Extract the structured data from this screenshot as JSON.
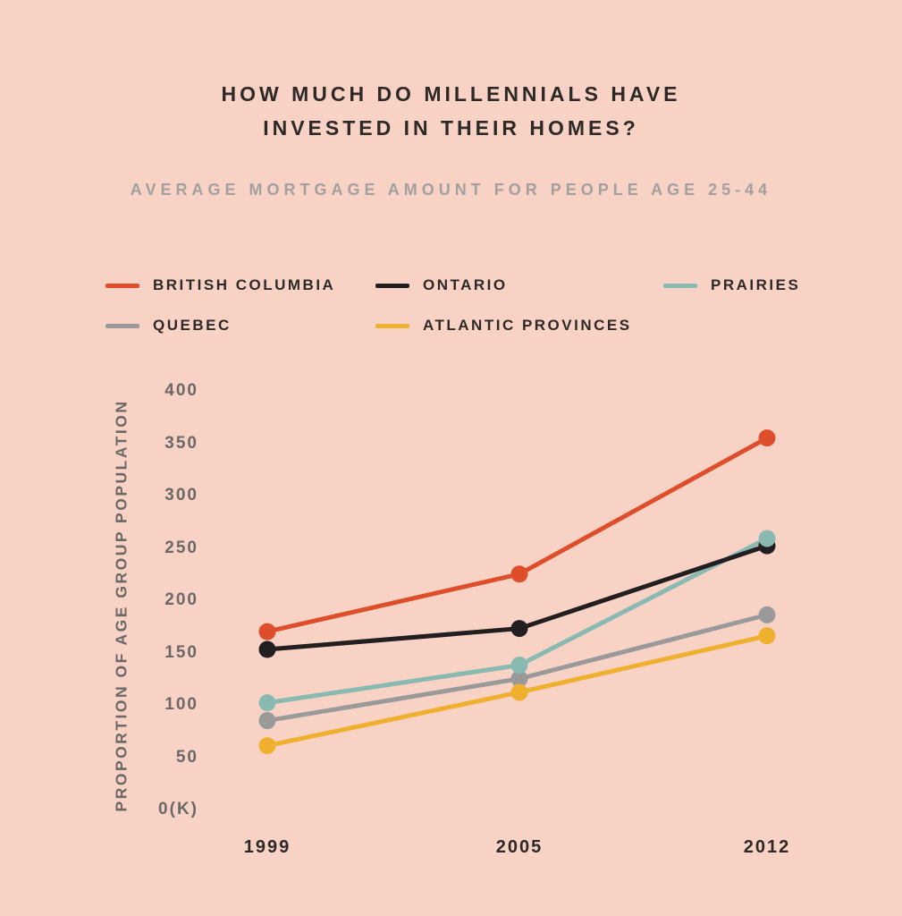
{
  "page": {
    "background_color": "#F8D3C5",
    "title_color": "#2D2926",
    "subtitle_color": "#A3A09E",
    "axis_text_color": "#6B6867"
  },
  "chart_data": {
    "type": "line",
    "title": "HOW MUCH DO MILLENNIALS HAVE INVESTED IN THEIR HOMES?",
    "title_lines": [
      "HOW MUCH DO MILLENNIALS HAVE",
      "INVESTED IN THEIR HOMES?"
    ],
    "subtitle": "AVERAGE MORTGAGE AMOUNT FOR PEOPLE AGE 25-44",
    "xlabel": "",
    "ylabel": "PROPORTION OF AGE GROUP POPULATION",
    "categories": [
      "1999",
      "2005",
      "2012"
    ],
    "series": [
      {
        "name": "BRITISH COLUMBIA",
        "color": "#DE4E2B",
        "values": [
          170,
          225,
          355
        ]
      },
      {
        "name": "ONTARIO",
        "color": "#231F20",
        "values": [
          153,
          173,
          252
        ]
      },
      {
        "name": "PRAIRIES",
        "color": "#88BAB1",
        "values": [
          102,
          138,
          259
        ]
      },
      {
        "name": "QUEBEC",
        "color": "#9A9A9A",
        "values": [
          85,
          125,
          186
        ]
      },
      {
        "name": "ATLANTIC PROVINCES",
        "color": "#F0B02F",
        "values": [
          61,
          112,
          166
        ]
      }
    ],
    "yticks": {
      "values": [
        400,
        350,
        300,
        250,
        200,
        150,
        100,
        50,
        0
      ],
      "labels": [
        "400",
        "350",
        "300",
        "250",
        "200",
        "150",
        "100",
        "50",
        "0(K)"
      ]
    },
    "ylim": [
      0,
      430
    ],
    "grid": false,
    "legend_position": "top-left, two rows",
    "marker": "filled-circle"
  }
}
